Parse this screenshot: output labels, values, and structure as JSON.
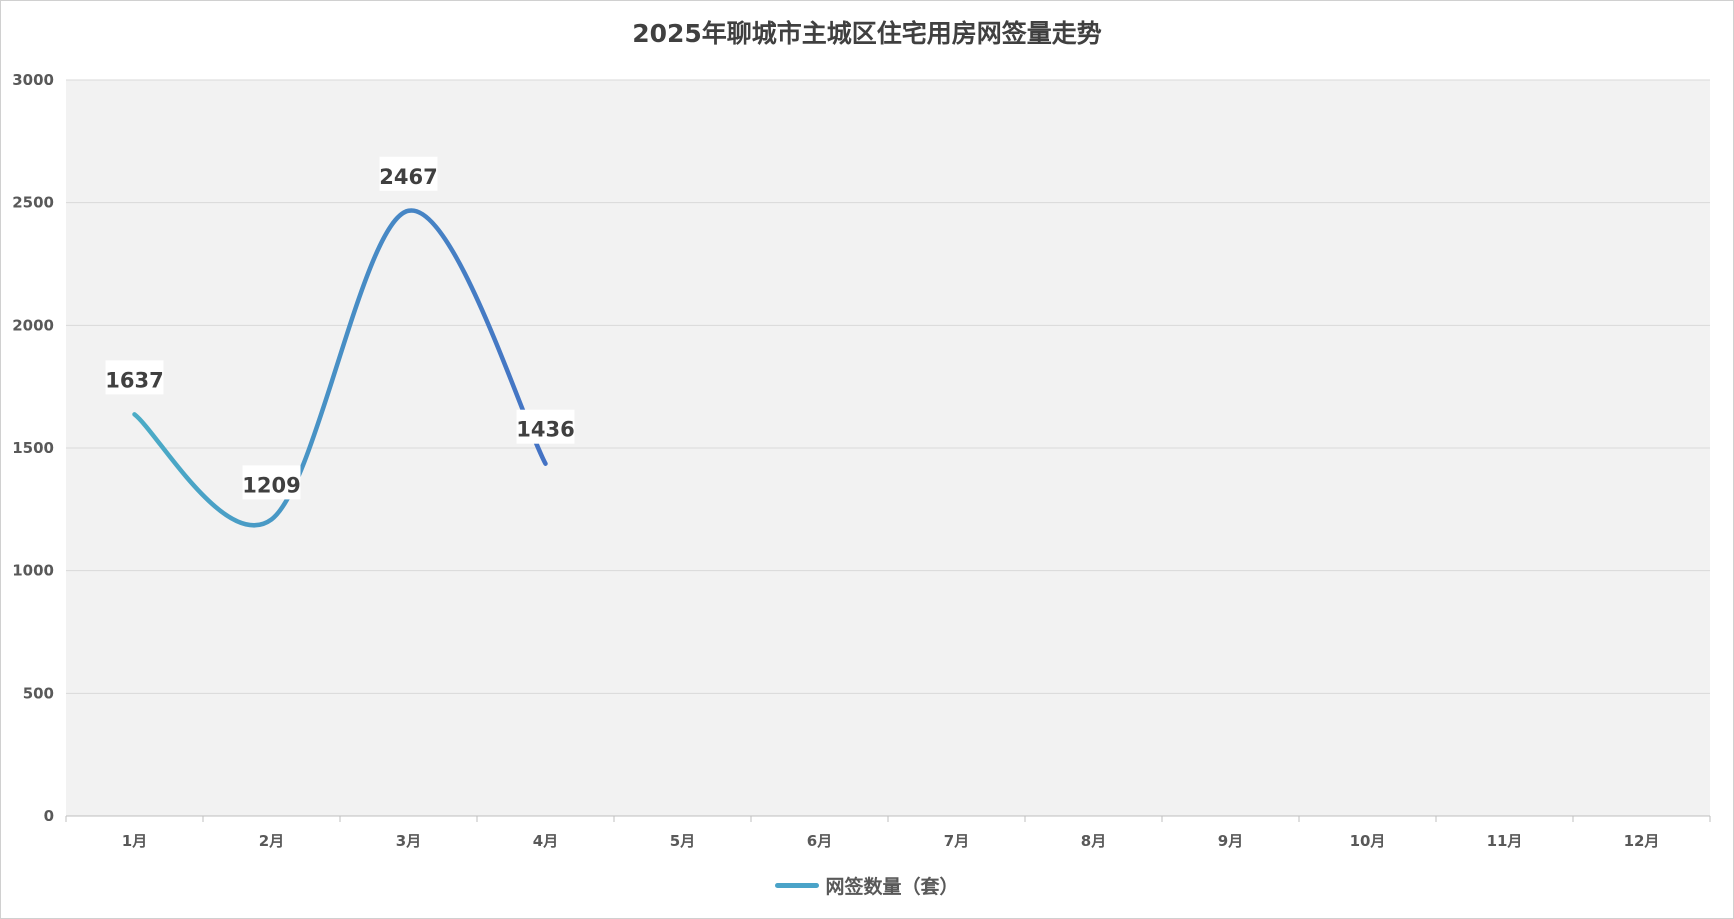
{
  "chart_data": {
    "type": "line",
    "title": "2025年聊城市主城区住宅用房网签量走势",
    "categories": [
      "1月",
      "2月",
      "3月",
      "4月",
      "5月",
      "6月",
      "7月",
      "8月",
      "9月",
      "10月",
      "11月",
      "12月"
    ],
    "series": [
      {
        "name": "网签数量（套）",
        "values": [
          1637,
          1209,
          2467,
          1436,
          null,
          null,
          null,
          null,
          null,
          null,
          null,
          null
        ]
      }
    ],
    "ylim": [
      0,
      3000
    ],
    "yticks": [
      0,
      500,
      1000,
      1500,
      2000,
      2500,
      3000
    ],
    "grid": true,
    "smooth": true,
    "legend": "bottom",
    "colors": {
      "line_start": "#4bacc6",
      "line_end": "#4472c4",
      "plot_bg": "#f2f2f2",
      "grid": "#d9d9d9"
    }
  }
}
